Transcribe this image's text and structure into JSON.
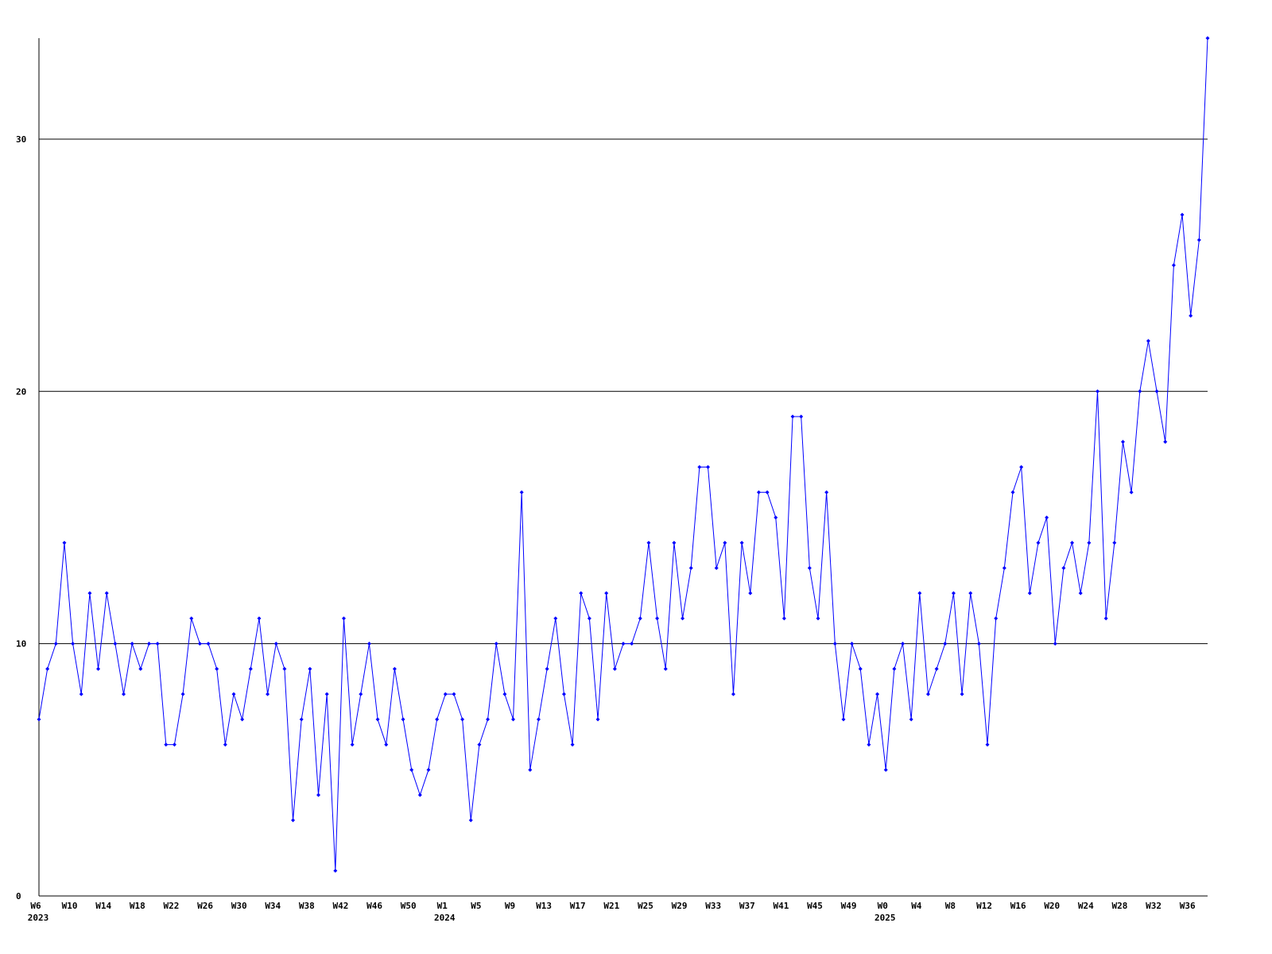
{
  "chart_data": {
    "type": "line",
    "categories": [
      "W6",
      null,
      null,
      null,
      "W10",
      null,
      null,
      null,
      "W14",
      null,
      null,
      null,
      "W18",
      null,
      null,
      null,
      "W22",
      null,
      null,
      null,
      "W26",
      null,
      null,
      null,
      "W30",
      null,
      null,
      null,
      "W34",
      null,
      null,
      null,
      "W38",
      null,
      null,
      null,
      "W42",
      null,
      null,
      null,
      "W46",
      null,
      null,
      null,
      "W50",
      null,
      null,
      null,
      "W1",
      null,
      null,
      null,
      "W5",
      null,
      null,
      null,
      "W9",
      null,
      null,
      null,
      "W13",
      null,
      null,
      null,
      "W17",
      null,
      null,
      null,
      "W21",
      null,
      null,
      null,
      "W25",
      null,
      null,
      null,
      "W29",
      null,
      null,
      null,
      "W33",
      null,
      null,
      null,
      "W37",
      null,
      null,
      null,
      "W41",
      null,
      null,
      null,
      "W45",
      null,
      null,
      null,
      "W49",
      null,
      null,
      null,
      "W0",
      null,
      null,
      null,
      "W4",
      null,
      null,
      null,
      "W8",
      null,
      null,
      null,
      "W12",
      null,
      null,
      null,
      "W16",
      null,
      null,
      null,
      "W20",
      null,
      null,
      null,
      "W24",
      null,
      null,
      null,
      "W28",
      null,
      null,
      null,
      "W32",
      null,
      null,
      null,
      "W36",
      null,
      null
    ],
    "years": [
      "2023",
      null,
      null,
      null,
      null,
      null,
      null,
      null,
      null,
      null,
      null,
      null,
      null,
      null,
      null,
      null,
      null,
      null,
      null,
      null,
      null,
      null,
      null,
      null,
      null,
      null,
      null,
      null,
      null,
      null,
      null,
      null,
      null,
      null,
      null,
      null,
      null,
      null,
      null,
      null,
      null,
      null,
      null,
      null,
      null,
      null,
      null,
      null,
      "2024",
      null,
      null,
      null,
      null,
      null,
      null,
      null,
      null,
      null,
      null,
      null,
      null,
      null,
      null,
      null,
      null,
      null,
      null,
      null,
      null,
      null,
      null,
      null,
      null,
      null,
      null,
      null,
      null,
      null,
      null,
      null,
      null,
      null,
      null,
      null,
      null,
      null,
      null,
      null,
      null,
      null,
      null,
      null,
      null,
      null,
      null,
      null,
      null,
      null,
      null,
      null,
      "2025",
      null,
      null,
      null,
      null,
      null,
      null,
      null,
      null,
      null,
      null,
      null,
      null,
      null,
      null,
      null,
      null,
      null,
      null,
      null,
      null,
      null,
      null,
      null,
      null,
      null,
      null,
      null,
      null,
      null,
      null,
      null,
      null,
      null,
      null,
      null,
      null,
      null
    ],
    "series": [
      {
        "color": "#0000ff",
        "values": [
          7,
          9,
          10,
          14,
          10,
          8,
          12,
          9,
          12,
          10,
          8,
          10,
          9,
          10,
          10,
          6,
          6,
          8,
          11,
          10,
          10,
          9,
          6,
          8,
          7,
          9,
          11,
          8,
          10,
          9,
          3,
          7,
          9,
          4,
          8,
          1,
          11,
          6,
          8,
          10,
          7,
          6,
          9,
          7,
          5,
          4,
          5,
          7,
          8,
          8,
          7,
          3,
          6,
          7,
          10,
          8,
          7,
          16,
          5,
          7,
          9,
          11,
          8,
          6,
          12,
          11,
          7,
          12,
          9,
          10,
          10,
          11,
          14,
          11,
          9,
          14,
          11,
          13,
          17,
          17,
          13,
          14,
          8,
          14,
          12,
          16,
          16,
          15,
          11,
          19,
          19,
          13,
          11,
          16,
          10,
          7,
          10,
          9,
          6,
          8,
          5,
          9,
          10,
          7,
          12,
          8,
          9,
          10,
          12,
          8,
          12,
          10,
          6,
          11,
          13,
          16,
          17,
          12,
          14,
          15,
          10,
          13,
          14,
          12,
          14,
          20,
          11,
          14,
          18,
          16,
          20,
          22,
          20,
          18,
          25,
          27,
          23,
          26,
          34
        ]
      }
    ],
    "ylim": [
      0,
      34
    ],
    "yticks": [
      0,
      10,
      20,
      30
    ],
    "grid": true
  }
}
